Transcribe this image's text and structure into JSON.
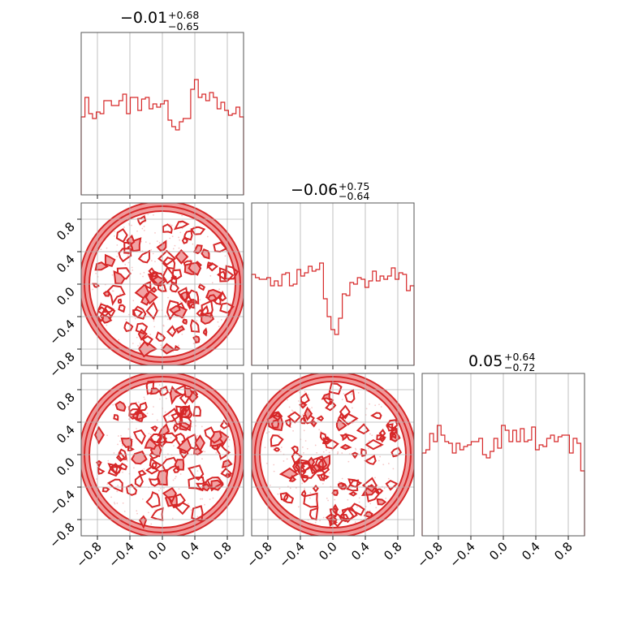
{
  "chart_data": {
    "type": "corner",
    "titles": [
      {
        "value": "−0.01",
        "plus": "+0.68",
        "minus": "−0.65"
      },
      {
        "value": "−0.06",
        "plus": "+0.75",
        "minus": "−0.64"
      },
      {
        "value": "0.05",
        "plus": "+0.64",
        "minus": "−0.72"
      }
    ],
    "range": [
      -1.0,
      1.0
    ],
    "ticks": [
      -0.8,
      -0.4,
      0.0,
      0.4,
      0.8
    ],
    "tick_labels": [
      "−0.8",
      "−0.4",
      "0.0",
      "0.4",
      "0.8"
    ],
    "grid": true,
    "color": "#d62728",
    "fill_color": "#f19a9b",
    "histograms": [
      [
        0.48,
        0.6,
        0.5,
        0.47,
        0.51,
        0.5,
        0.58,
        0.58,
        0.55,
        0.55,
        0.58,
        0.62,
        0.5,
        0.6,
        0.6,
        0.52,
        0.59,
        0.6,
        0.53,
        0.56,
        0.54,
        0.56,
        0.58,
        0.46,
        0.42,
        0.4,
        0.45,
        0.47,
        0.47,
        0.65,
        0.71,
        0.6,
        0.62,
        0.58,
        0.63,
        0.6,
        0.53,
        0.57,
        0.52,
        0.49,
        0.5,
        0.54,
        0.48
      ],
      [
        0.56,
        0.54,
        0.53,
        0.53,
        0.54,
        0.49,
        0.52,
        0.49,
        0.56,
        0.57,
        0.49,
        0.5,
        0.59,
        0.55,
        0.57,
        0.61,
        0.58,
        0.59,
        0.63,
        0.41,
        0.3,
        0.22,
        0.19,
        0.29,
        0.44,
        0.43,
        0.51,
        0.5,
        0.54,
        0.53,
        0.48,
        0.52,
        0.58,
        0.52,
        0.55,
        0.53,
        0.55,
        0.6,
        0.53,
        0.57,
        0.56,
        0.46,
        0.49
      ],
      [
        0.51,
        0.53,
        0.63,
        0.58,
        0.68,
        0.62,
        0.58,
        0.57,
        0.51,
        0.57,
        0.53,
        0.55,
        0.56,
        0.58,
        0.58,
        0.6,
        0.5,
        0.48,
        0.52,
        0.6,
        0.54,
        0.68,
        0.65,
        0.58,
        0.65,
        0.58,
        0.66,
        0.58,
        0.59,
        0.67,
        0.53,
        0.56,
        0.55,
        0.6,
        0.62,
        0.58,
        0.61,
        0.62,
        0.62,
        0.51,
        0.6,
        0.57,
        0.4
      ]
    ]
  }
}
